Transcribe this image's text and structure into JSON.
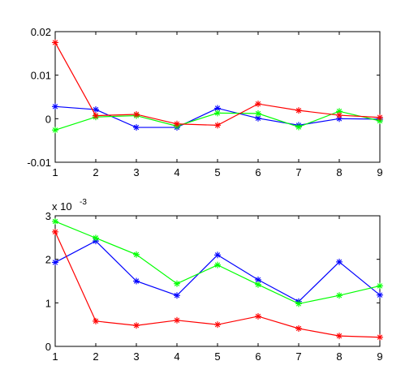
{
  "chart_data": [
    {
      "type": "line",
      "title": "",
      "xlabel": "",
      "ylabel": "",
      "x": [
        1,
        2,
        3,
        4,
        5,
        6,
        7,
        8,
        9
      ],
      "xlim": [
        1,
        9
      ],
      "ylim": [
        -0.01,
        0.02
      ],
      "xticks": [
        "1",
        "2",
        "3",
        "4",
        "5",
        "6",
        "7",
        "8",
        "9"
      ],
      "yticks": [
        "-0.01",
        "0",
        "0.01",
        "0.02"
      ],
      "ytick_values": [
        -0.01,
        0,
        0.01,
        0.02
      ],
      "grid": false,
      "series": [
        {
          "color": "#0000ff",
          "marker": "asterisk",
          "values": [
            0.0028,
            0.0021,
            -0.002,
            -0.002,
            0.0024,
            0.0001,
            -0.0015,
            0.0,
            -0.0001
          ]
        },
        {
          "color": "#00ff00",
          "marker": "asterisk",
          "values": [
            -0.0026,
            0.0004,
            0.0007,
            -0.0017,
            0.0013,
            0.0012,
            -0.0019,
            0.0017,
            -0.0005
          ]
        },
        {
          "color": "#ff0000",
          "marker": "asterisk",
          "values": [
            0.0175,
            0.0007,
            0.001,
            -0.0012,
            -0.0015,
            0.0034,
            0.0019,
            0.0008,
            0.0003
          ]
        }
      ]
    },
    {
      "type": "line",
      "title": "",
      "xlabel": "",
      "ylabel": "",
      "exponent_label": "x 10",
      "exponent_power": "-3",
      "x": [
        1,
        2,
        3,
        4,
        5,
        6,
        7,
        8,
        9
      ],
      "xlim": [
        1,
        9
      ],
      "ylim": [
        0,
        3
      ],
      "xticks": [
        "1",
        "2",
        "3",
        "4",
        "5",
        "6",
        "7",
        "8",
        "9"
      ],
      "yticks": [
        "0",
        "1",
        "2",
        "3"
      ],
      "ytick_values": [
        0,
        1,
        2,
        3
      ],
      "grid": false,
      "series": [
        {
          "color": "#0000ff",
          "marker": "asterisk",
          "values": [
            1.93,
            2.42,
            1.5,
            1.17,
            2.1,
            1.53,
            1.03,
            1.94,
            1.18
          ]
        },
        {
          "color": "#00ff00",
          "marker": "asterisk",
          "values": [
            2.87,
            2.49,
            2.11,
            1.44,
            1.87,
            1.42,
            0.98,
            1.17,
            1.39
          ]
        },
        {
          "color": "#ff0000",
          "marker": "asterisk",
          "values": [
            2.63,
            0.58,
            0.48,
            0.6,
            0.5,
            0.69,
            0.41,
            0.24,
            0.21
          ]
        }
      ]
    }
  ]
}
